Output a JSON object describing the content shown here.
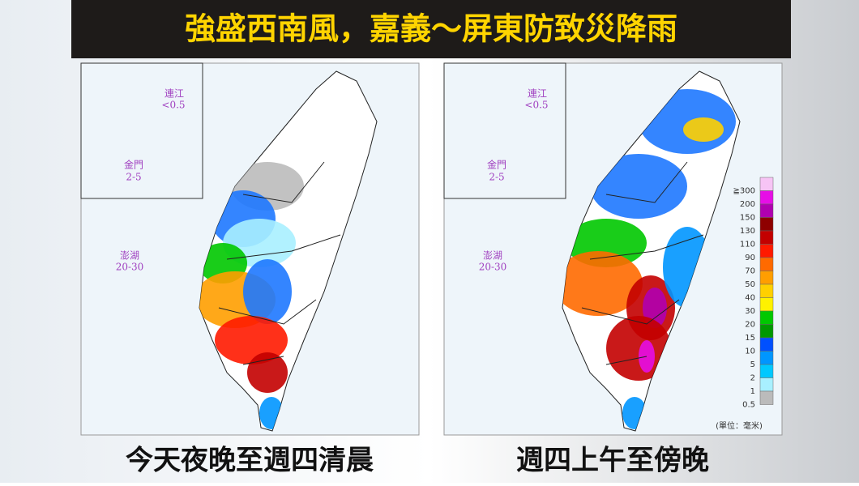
{
  "headline": "強盛西南風，嘉義～屏東防致災降雨",
  "maps": [
    {
      "caption": "今天夜晚至週四清晨",
      "insets": [
        {
          "name": "連江",
          "value": "<0.5"
        },
        {
          "name": "金門",
          "value": "2-5"
        },
        {
          "name": "澎湖",
          "value": "20-30"
        }
      ]
    },
    {
      "caption": "週四上午至傍晚",
      "insets": [
        {
          "name": "連江",
          "value": "<0.5"
        },
        {
          "name": "金門",
          "value": "2-5"
        },
        {
          "name": "澎湖",
          "value": "20-30"
        }
      ]
    }
  ],
  "legend": {
    "unit": "(單位：毫米)",
    "entries": [
      {
        "label": "≧300",
        "color": "#f7c4f5"
      },
      {
        "label": "200",
        "color": "#e60ee6"
      },
      {
        "label": "150",
        "color": "#b000b0"
      },
      {
        "label": "130",
        "color": "#8e0000"
      },
      {
        "label": "110",
        "color": "#c30000"
      },
      {
        "label": "90",
        "color": "#ff1a00"
      },
      {
        "label": "70",
        "color": "#ff6a00"
      },
      {
        "label": "50",
        "color": "#ff9e00"
      },
      {
        "label": "40",
        "color": "#ffd000"
      },
      {
        "label": "30",
        "color": "#fff200"
      },
      {
        "label": "20",
        "color": "#00c800"
      },
      {
        "label": "15",
        "color": "#009900"
      },
      {
        "label": "10",
        "color": "#0050ff"
      },
      {
        "label": "5",
        "color": "#0096ff"
      },
      {
        "label": "2",
        "color": "#00c8ff"
      },
      {
        "label": "1",
        "color": "#a8f0ff"
      },
      {
        "label": "0.5",
        "color": "#bbbbbb"
      }
    ]
  }
}
